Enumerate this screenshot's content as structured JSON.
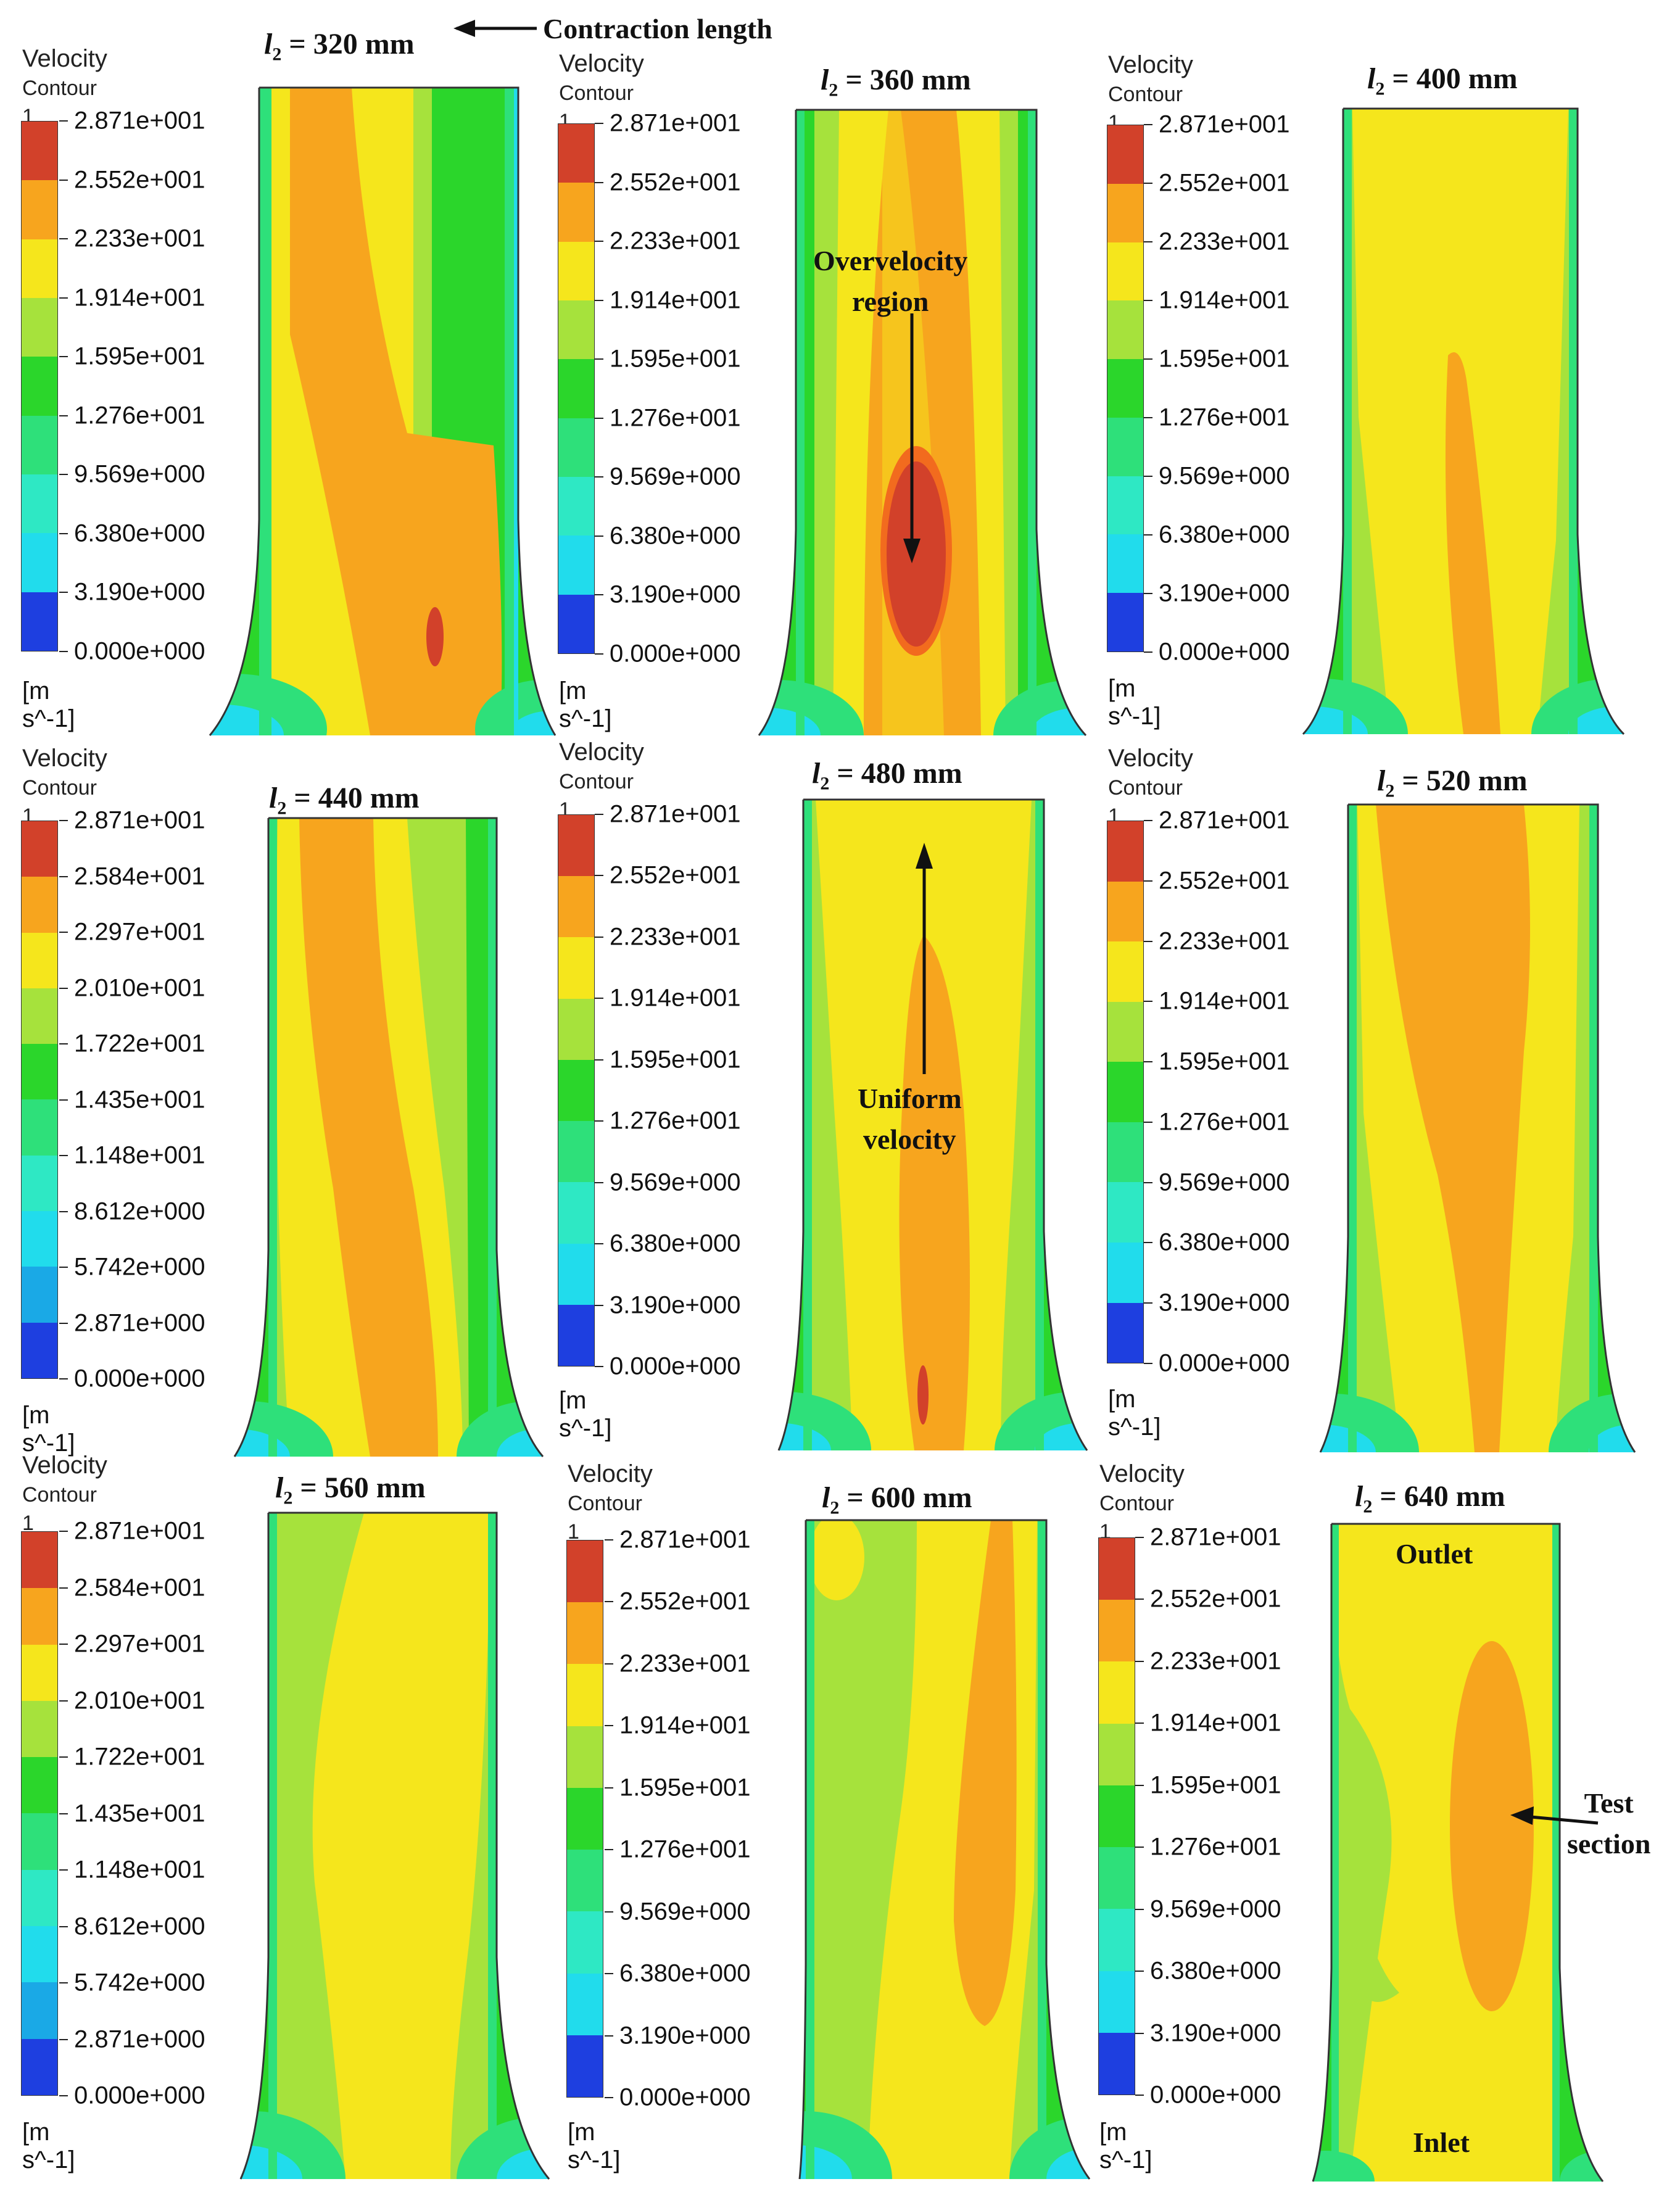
{
  "legend": {
    "title": "Velocity",
    "subtitle": "Contour 1",
    "unit": "[m s^-1]",
    "colors": [
      "#d2412a",
      "#f26b1e",
      "#f7a51e",
      "#f5e61c",
      "#a6e23c",
      "#2bd62b",
      "#2ee07a",
      "#2ee8c4",
      "#21dcec",
      "#1aa9e6",
      "#1e3fe0"
    ],
    "labels_a": [
      "2.871e+001",
      "2.552e+001",
      "2.233e+001",
      "1.914e+001",
      "1.595e+001",
      "1.276e+001",
      "9.569e+000",
      "6.380e+000",
      "3.190e+000",
      "0.000e+000"
    ],
    "labels_b": [
      "2.871e+001",
      "2.584e+001",
      "2.297e+001",
      "2.010e+001",
      "1.722e+001",
      "1.435e+001",
      "1.148e+001",
      "8.612e+000",
      "5.742e+000",
      "2.871e+000",
      "0.000e+000"
    ]
  },
  "panels": [
    {
      "l_symbol": "l",
      "l_sub": "2",
      "title_value": " = 320 mm"
    },
    {
      "l_symbol": "l",
      "l_sub": "2",
      "title_value": " = 360 mm"
    },
    {
      "l_symbol": "l",
      "l_sub": "2",
      "title_value": " = 400 mm"
    },
    {
      "l_symbol": "l",
      "l_sub": "2",
      "title_value": " = 440 mm"
    },
    {
      "l_symbol": "l",
      "l_sub": "2",
      "title_value": " = 480 mm"
    },
    {
      "l_symbol": "l",
      "l_sub": "2",
      "title_value": " = 520 mm"
    },
    {
      "l_symbol": "l",
      "l_sub": "2",
      "title_value": " = 560 mm"
    },
    {
      "l_symbol": "l",
      "l_sub": "2",
      "title_value": " = 600 mm"
    },
    {
      "l_symbol": "l",
      "l_sub": "2",
      "title_value": " = 640 mm"
    }
  ],
  "annotations": {
    "contraction_length": "Contraction length",
    "overvelocity_line1": "Overvelocity",
    "overvelocity_line2": "region",
    "uniform_line1": "Uniform",
    "uniform_line2": "velocity",
    "outlet": "Outlet",
    "inlet": "Inlet",
    "test_line1": "Test",
    "test_line2": "section"
  }
}
